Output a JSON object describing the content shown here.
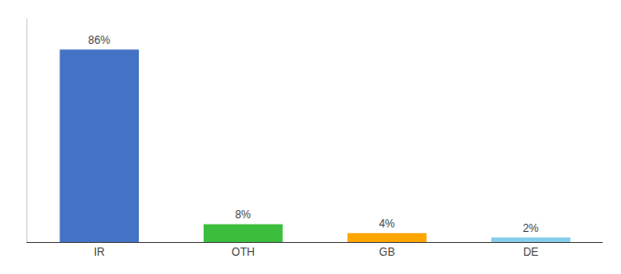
{
  "chart_data": {
    "type": "bar",
    "categories": [
      "IR",
      "OTH",
      "GB",
      "DE"
    ],
    "values": [
      86,
      8,
      4,
      2
    ],
    "value_labels": [
      "86%",
      "8%",
      "4%",
      "2%"
    ],
    "colors": [
      "#4472C4",
      "#3DBD3D",
      "#FFA500",
      "#87CEEB"
    ],
    "ylim": [
      0,
      100
    ],
    "data_labels": true,
    "tick_labels": "x",
    "grid": false
  }
}
